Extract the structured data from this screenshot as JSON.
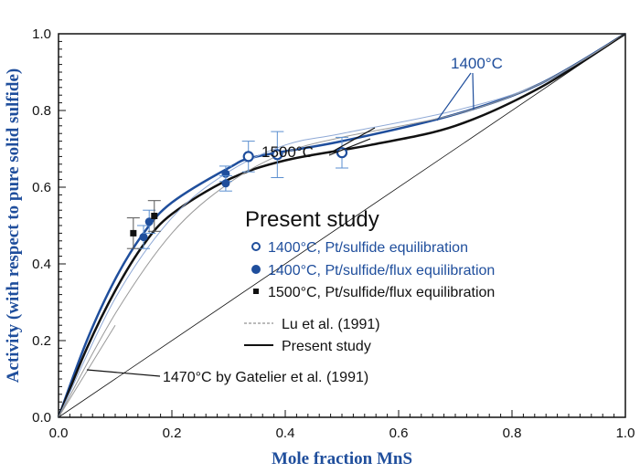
{
  "chart_data": {
    "type": "scatter",
    "xlabel": "Mole fraction MnS",
    "ylabel": "Activity (with respect to pure solid sulfide)",
    "xlim": [
      0,
      1.0
    ],
    "ylim": [
      0,
      1.0
    ],
    "xticks": [
      "0.0",
      "0.2",
      "0.4",
      "0.6",
      "0.8",
      "1.0"
    ],
    "yticks": [
      "0.0",
      "0.2",
      "0.4",
      "0.6",
      "0.8",
      "1.0"
    ],
    "legend_title": "Present study",
    "legend": [
      "1400°C, Pt/sulfide equilibration",
      "1400°C, Pt/sulfide/flux equilibration",
      "1500°C, Pt/sulfide/flux equilibration",
      "Lu et al. (1991)",
      "Present study"
    ],
    "annotations": [
      "1400°C",
      "1500°C",
      "1470°C by Gatelier et al. (1991)"
    ],
    "colors": {
      "blue": "#1f4e9c",
      "black": "#111111",
      "lightblue": "#8fa9d6",
      "grey": "#999999"
    },
    "points": [
      {
        "series": "1400°C, Pt/sulfide equilibration",
        "marker": "open-circle",
        "data": [
          [
            0.335,
            0.68,
            0.04
          ],
          [
            0.386,
            0.685,
            0.06
          ],
          [
            0.5,
            0.69,
            0.04
          ]
        ]
      },
      {
        "series": "1400°C, Pt/sulfide/flux equilibration",
        "marker": "filled-circle",
        "data": [
          [
            0.295,
            0.635,
            0.02
          ],
          [
            0.295,
            0.61,
            0.02
          ],
          [
            0.15,
            0.47,
            0.03
          ],
          [
            0.16,
            0.51,
            0.03
          ]
        ]
      },
      {
        "series": "1500°C, Pt/sulfide/flux equilibration",
        "marker": "square",
        "data": [
          [
            0.132,
            0.48,
            0.04
          ],
          [
            0.169,
            0.525,
            0.04
          ]
        ]
      }
    ],
    "curves": [
      {
        "name": "Present study 1400°C",
        "color": "blue",
        "width": 2.5,
        "x": [
          0,
          0.05,
          0.1,
          0.15,
          0.2,
          0.3,
          0.35,
          0.5,
          0.7,
          0.85,
          1
        ],
        "y": [
          0,
          0.2,
          0.36,
          0.48,
          0.56,
          0.65,
          0.68,
          0.72,
          0.79,
          0.87,
          1
        ]
      },
      {
        "name": "Present study 1500°C",
        "color": "black",
        "width": 2.5,
        "x": [
          0,
          0.05,
          0.1,
          0.15,
          0.2,
          0.3,
          0.4,
          0.55,
          0.7,
          0.85,
          1
        ],
        "y": [
          0,
          0.18,
          0.33,
          0.45,
          0.53,
          0.62,
          0.67,
          0.71,
          0.76,
          0.86,
          1
        ]
      },
      {
        "name": "Lu et al. 1400°C",
        "color": "lightblue",
        "width": 1,
        "x": [
          0,
          0.1,
          0.2,
          0.3,
          0.4,
          0.5,
          0.7,
          0.85,
          1
        ],
        "y": [
          0,
          0.31,
          0.52,
          0.64,
          0.71,
          0.74,
          0.8,
          0.87,
          1
        ]
      },
      {
        "name": "Lu et al. 1500°C",
        "color": "grey",
        "width": 1,
        "x": [
          0,
          0.1,
          0.2,
          0.3,
          0.4,
          0.5,
          0.7,
          0.85,
          1
        ],
        "y": [
          0,
          0.27,
          0.48,
          0.61,
          0.69,
          0.73,
          0.79,
          0.87,
          1
        ]
      },
      {
        "name": "Gatelier et al.",
        "color": "grey",
        "width": 1,
        "x": [
          0,
          0.1
        ],
        "y": [
          0,
          0.24
        ]
      },
      {
        "name": "Raoult",
        "color": "black",
        "width": 0.8,
        "x": [
          0,
          1
        ],
        "y": [
          0,
          1
        ]
      }
    ]
  }
}
